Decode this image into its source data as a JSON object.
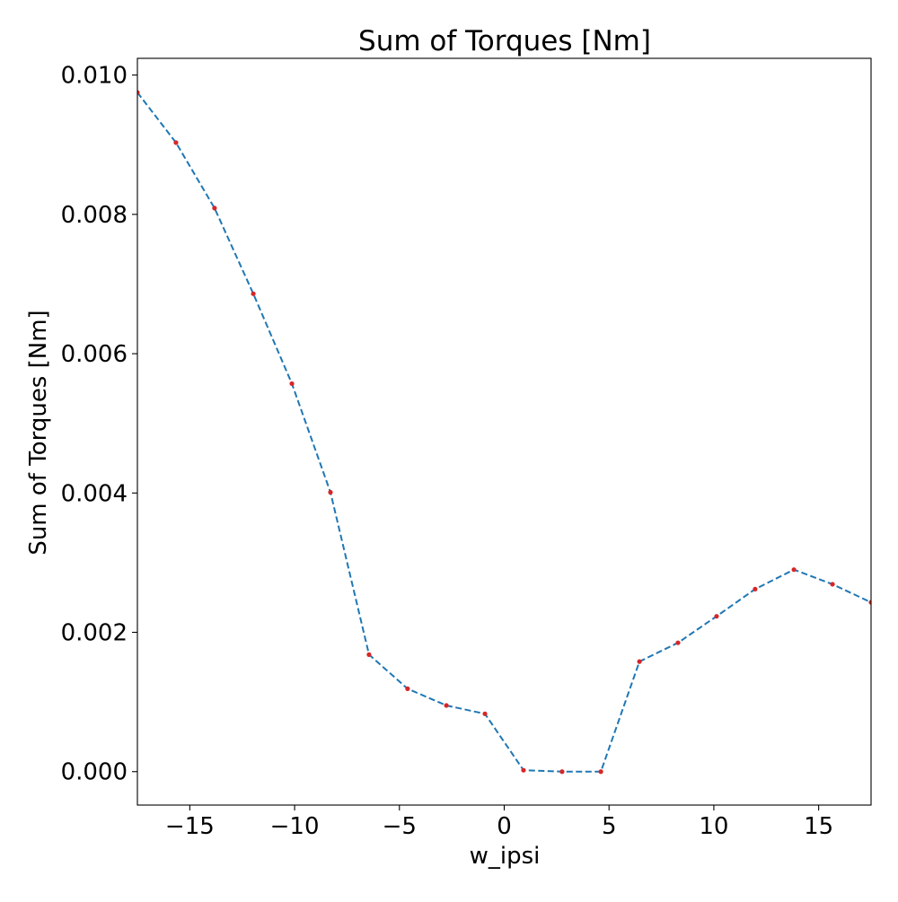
{
  "chart_data": {
    "type": "line",
    "title": "Sum of Torques [Nm]",
    "xlabel": "w_ipsi",
    "ylabel": "Sum of Torques [Nm]",
    "xlim": [
      -17.5,
      17.5
    ],
    "ylim": [
      -0.00048,
      0.01024
    ],
    "xticks": [
      -15,
      -10,
      -5,
      0,
      5,
      10,
      15
    ],
    "xtick_labels": [
      "−15",
      "−10",
      "−5",
      "0",
      "5",
      "10",
      "15"
    ],
    "yticks": [
      0.0,
      0.002,
      0.004,
      0.006,
      0.008,
      0.01
    ],
    "ytick_labels": [
      "0.000",
      "0.002",
      "0.004",
      "0.006",
      "0.008",
      "0.010"
    ],
    "grid": false,
    "series": [
      {
        "line_style": "dashed",
        "line_color": "#1f77b4",
        "marker_color": "#d62728",
        "x": [
          -17.5,
          -15.66,
          -13.82,
          -11.97,
          -10.13,
          -8.29,
          -6.45,
          -4.61,
          -2.76,
          -0.92,
          0.92,
          2.76,
          4.61,
          6.45,
          8.29,
          10.13,
          11.97,
          13.82,
          15.66,
          17.5
        ],
        "values": [
          0.00975,
          0.00903,
          0.00809,
          0.00686,
          0.00557,
          0.00401,
          0.00168,
          0.00119,
          0.00095,
          0.00083,
          2e-05,
          0.0,
          0.0,
          0.00158,
          0.00185,
          0.00223,
          0.00262,
          0.0029,
          0.00269,
          0.00243
        ]
      }
    ]
  }
}
